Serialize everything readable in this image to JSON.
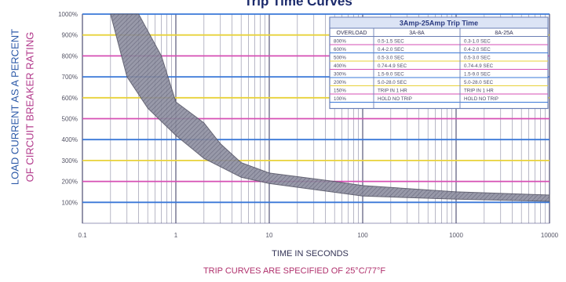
{
  "chart_data": {
    "type": "area",
    "title": "Trip Time Curves",
    "xlabel": "TIME IN SECONDS",
    "ylabel_line1": "LOAD CURRENT AS A PERCENT",
    "ylabel_line2": "OF CIRCUIT BREAKER RATING",
    "footnote": "TRIP CURVES ARE SPECIFIED OF 25°C/77°F",
    "x_scale": "log",
    "xlim": [
      0.1,
      10000
    ],
    "ylim": [
      0,
      1000
    ],
    "x_ticks": [
      "0.1",
      "1",
      "10",
      "100",
      "1000",
      "10000"
    ],
    "y_ticks": [
      "100%",
      "200%",
      "300%",
      "400%",
      "500%",
      "600%",
      "700%",
      "800%",
      "900%",
      "1000%"
    ],
    "grid": true,
    "series": [
      {
        "name": "",
        "upper_boundary": [
          {
            "x": 0.4,
            "y": 1000
          },
          {
            "x": 0.7,
            "y": 800
          },
          {
            "x": 1,
            "y": 580
          },
          {
            "x": 2,
            "y": 480
          },
          {
            "x": 3,
            "y": 380
          },
          {
            "x": 5,
            "y": 290
          },
          {
            "x": 10,
            "y": 240
          },
          {
            "x": 50,
            "y": 200
          },
          {
            "x": 100,
            "y": 180
          },
          {
            "x": 1000,
            "y": 150
          },
          {
            "x": 10000,
            "y": 135
          }
        ],
        "lower_boundary": [
          {
            "x": 0.2,
            "y": 1000
          },
          {
            "x": 0.3,
            "y": 700
          },
          {
            "x": 0.5,
            "y": 550
          },
          {
            "x": 1,
            "y": 420
          },
          {
            "x": 2,
            "y": 310
          },
          {
            "x": 5,
            "y": 220
          },
          {
            "x": 10,
            "y": 190
          },
          {
            "x": 100,
            "y": 130
          },
          {
            "x": 1000,
            "y": 115
          },
          {
            "x": 10000,
            "y": 105
          }
        ]
      }
    ],
    "table": {
      "title": "3Amp-25Amp Trip Time",
      "headers": [
        "OVERLOAD",
        "3A-8A",
        "8A-25A"
      ],
      "rows": [
        [
          "800%",
          "0.5-1.5 SEC",
          "0.3-1.0 SEC"
        ],
        [
          "600%",
          "0.4-2.0 SEC",
          "0.4-2.0 SEC"
        ],
        [
          "500%",
          "0.5-3.0 SEC",
          "0.5-3.0 SEC"
        ],
        [
          "400%",
          "0.74-4.9 SEC",
          "0.74-4.9 SEC"
        ],
        [
          "300%",
          "1.5-9.0 SEC",
          "1.5-9.0 SEC"
        ],
        [
          "200%",
          "5.0-28.0 SEC",
          "5.0-28.0 SEC"
        ],
        [
          "150%",
          "TRIP IN 1 HR",
          "TRIP IN 1 HR"
        ],
        [
          "100%",
          "HOLD NO TRIP",
          "HOLD NO TRIP"
        ]
      ]
    }
  },
  "colors": {
    "band_fill": "#8d8ea0",
    "band_stroke": "#555566",
    "grid_vertical": "#2a2a55",
    "grid_horizontal": [
      "#3a78d8",
      "#d64fb4",
      "#e8d23a",
      "#3a78d8",
      "#d64fb4",
      "#e8d23a",
      "#3a78d8",
      "#d64fb4",
      "#e8d23a",
      "#3a78d8"
    ],
    "table_border": "#6b7fb5",
    "table_title_bg": "#dce4f5"
  }
}
